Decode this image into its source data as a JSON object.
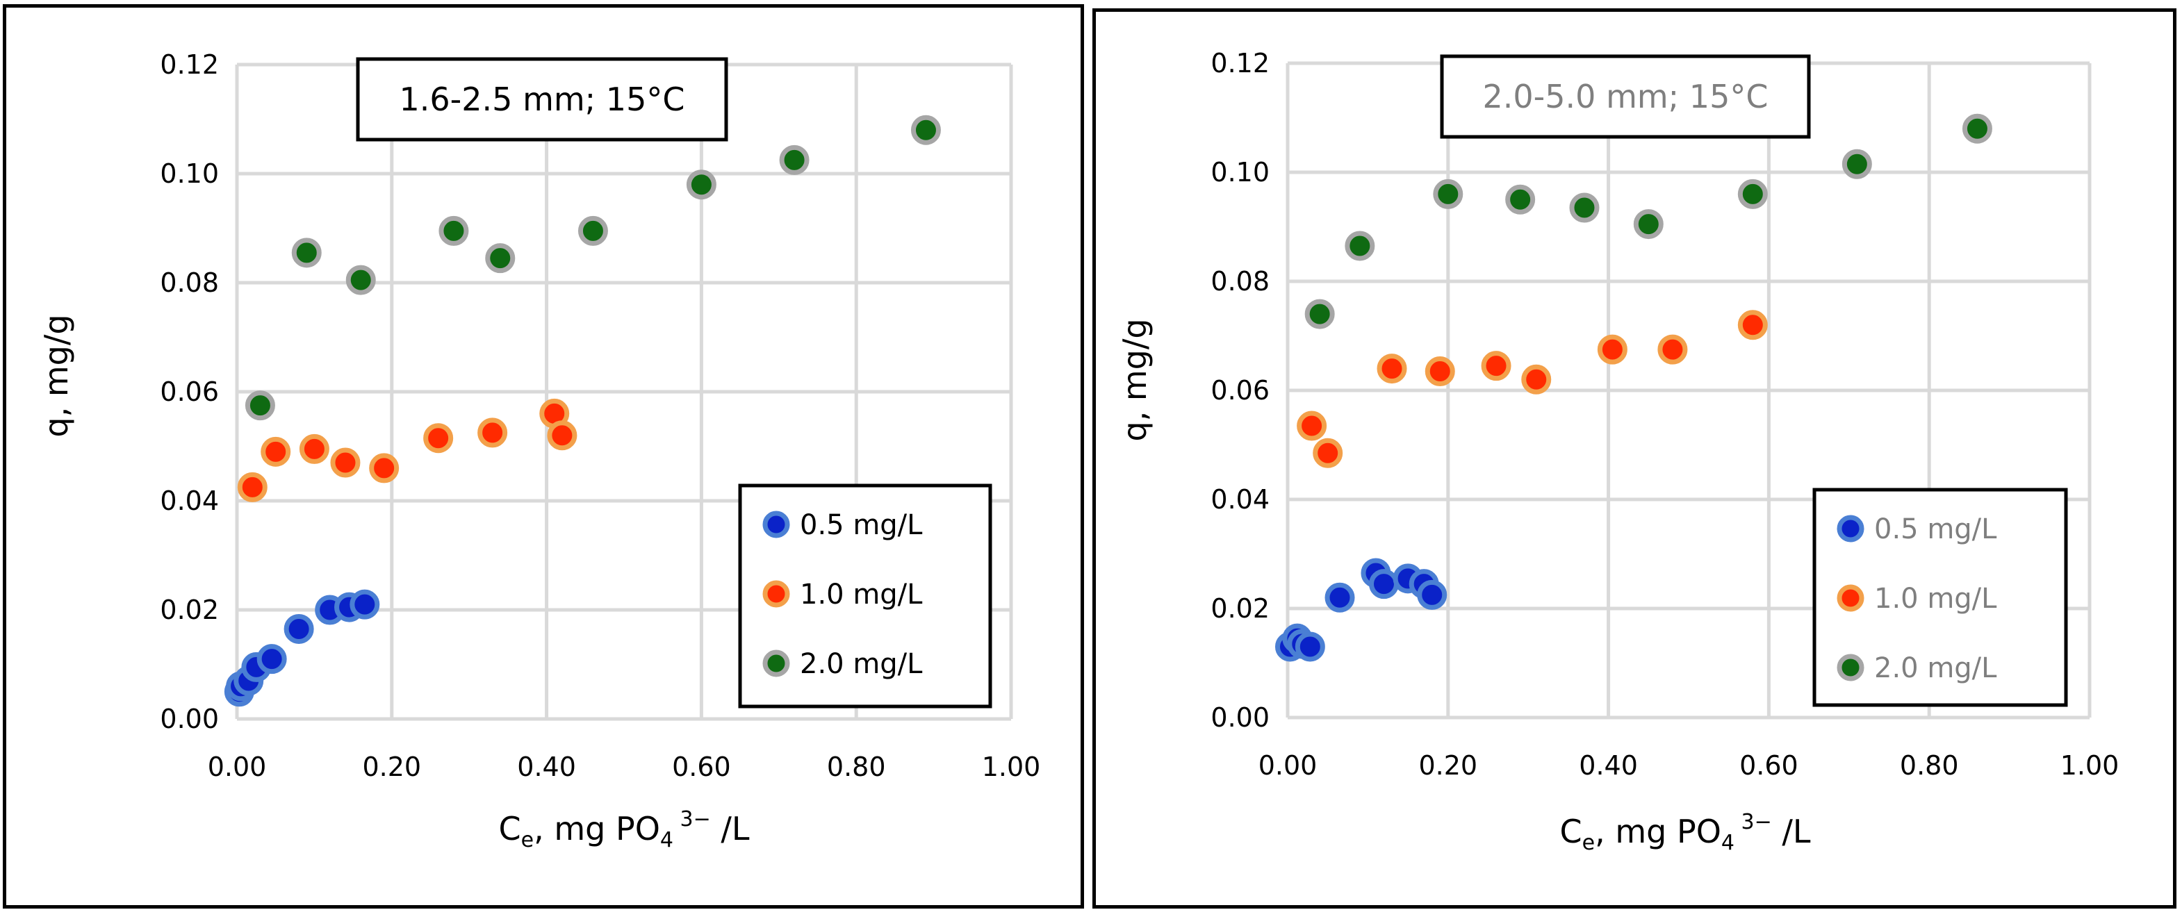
{
  "chart_data": [
    {
      "type": "scatter",
      "title": "1.6-2.5 mm; 15°C",
      "xlabel": "Ce, mg PO4 3− /L",
      "ylabel": "q, mg/g",
      "xlim": [
        0,
        1.0
      ],
      "ylim": [
        0,
        0.12
      ],
      "x_ticks": [
        "0.00",
        "0.20",
        "0.40",
        "0.60",
        "0.80",
        "1.00"
      ],
      "y_ticks": [
        "0.00",
        "0.02",
        "0.04",
        "0.06",
        "0.08",
        "0.10",
        "0.12"
      ],
      "grid": true,
      "legend_position": "bottom-right",
      "title_color": "#000000",
      "legend_text_color": "#000000",
      "series": [
        {
          "name": "0.5 mg/L",
          "fill": "#0a22c8",
          "edge": "#4a7fd4",
          "points": [
            [
              0.003,
              0.005
            ],
            [
              0.005,
              0.006
            ],
            [
              0.015,
              0.007
            ],
            [
              0.025,
              0.0095
            ],
            [
              0.045,
              0.011
            ],
            [
              0.08,
              0.0165
            ],
            [
              0.12,
              0.02
            ],
            [
              0.145,
              0.0205
            ],
            [
              0.165,
              0.021
            ]
          ]
        },
        {
          "name": "1.0 mg/L",
          "fill": "#ff2a00",
          "edge": "#f3a04a",
          "points": [
            [
              0.02,
              0.0425
            ],
            [
              0.05,
              0.049
            ],
            [
              0.1,
              0.0495
            ],
            [
              0.14,
              0.047
            ],
            [
              0.19,
              0.046
            ],
            [
              0.26,
              0.0515
            ],
            [
              0.33,
              0.0525
            ],
            [
              0.41,
              0.056
            ],
            [
              0.42,
              0.052
            ]
          ]
        },
        {
          "name": "2.0 mg/L",
          "fill": "#0f6a12",
          "edge": "#a6a6a6",
          "points": [
            [
              0.03,
              0.0575
            ],
            [
              0.09,
              0.0855
            ],
            [
              0.16,
              0.0805
            ],
            [
              0.28,
              0.0895
            ],
            [
              0.34,
              0.0845
            ],
            [
              0.46,
              0.0895
            ],
            [
              0.6,
              0.098
            ],
            [
              0.72,
              0.1025
            ],
            [
              0.89,
              0.108
            ]
          ]
        }
      ]
    },
    {
      "type": "scatter",
      "title": "2.0-5.0 mm; 15°C",
      "xlabel": "Ce, mg PO4 3− /L",
      "ylabel": "q, mg/g",
      "xlim": [
        0,
        1.0
      ],
      "ylim": [
        0,
        0.12
      ],
      "x_ticks": [
        "0.00",
        "0.20",
        "0.40",
        "0.60",
        "0.80",
        "1.00"
      ],
      "y_ticks": [
        "0.00",
        "0.02",
        "0.04",
        "0.06",
        "0.08",
        "0.10",
        "0.12"
      ],
      "grid": true,
      "legend_position": "bottom-right",
      "title_color": "#7f7f7f",
      "legend_text_color": "#7f7f7f",
      "series": [
        {
          "name": "0.5 mg/L",
          "fill": "#0a22c8",
          "edge": "#4a7fd4",
          "points": [
            [
              0.003,
              0.013
            ],
            [
              0.012,
              0.0145
            ],
            [
              0.018,
              0.0135
            ],
            [
              0.028,
              0.013
            ],
            [
              0.065,
              0.022
            ],
            [
              0.11,
              0.0265
            ],
            [
              0.12,
              0.0245
            ],
            [
              0.15,
              0.0255
            ],
            [
              0.17,
              0.0245
            ],
            [
              0.18,
              0.0225
            ]
          ]
        },
        {
          "name": "1.0 mg/L",
          "fill": "#ff2a00",
          "edge": "#f3a04a",
          "points": [
            [
              0.03,
              0.0535
            ],
            [
              0.05,
              0.0485
            ],
            [
              0.13,
              0.064
            ],
            [
              0.19,
              0.0635
            ],
            [
              0.26,
              0.0645
            ],
            [
              0.31,
              0.062
            ],
            [
              0.405,
              0.0675
            ],
            [
              0.48,
              0.0675
            ],
            [
              0.58,
              0.072
            ]
          ]
        },
        {
          "name": "2.0 mg/L",
          "fill": "#0f6a12",
          "edge": "#a6a6a6",
          "points": [
            [
              0.04,
              0.074
            ],
            [
              0.09,
              0.0865
            ],
            [
              0.2,
              0.096
            ],
            [
              0.29,
              0.095
            ],
            [
              0.37,
              0.0935
            ],
            [
              0.45,
              0.0905
            ],
            [
              0.58,
              0.096
            ],
            [
              0.71,
              0.1015
            ],
            [
              0.86,
              0.108
            ]
          ]
        }
      ]
    }
  ]
}
